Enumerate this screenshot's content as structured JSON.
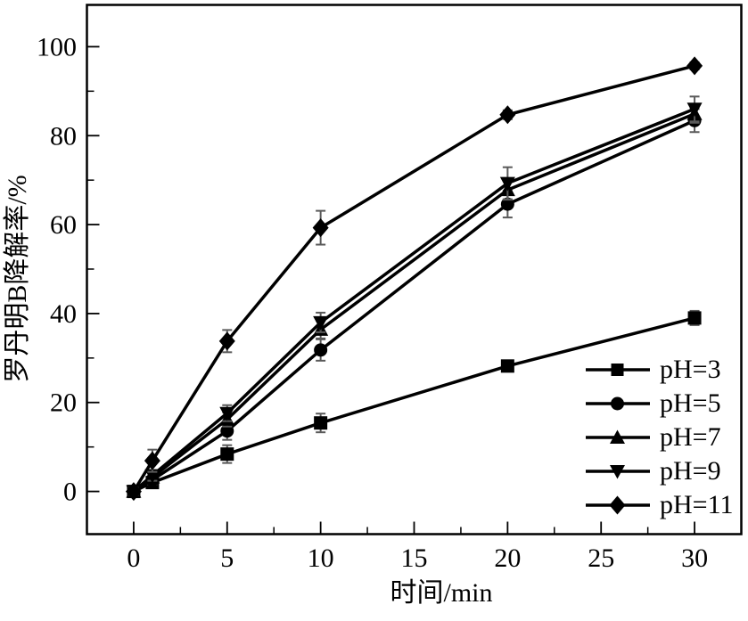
{
  "figure": {
    "background": "#ffffff",
    "axis_color": "#000000",
    "series_color": "#000000",
    "error_bar_color": "#5a5a5a",
    "tick_label_color": "#000000"
  },
  "chart_data": {
    "type": "line",
    "title": "",
    "xlabel": "时间/min",
    "ylabel": "罗丹明B降解率/%",
    "x": [
      0,
      1,
      5,
      10,
      20,
      30
    ],
    "xlim": [
      -2.5,
      32.5
    ],
    "ylim": [
      -9.6,
      109.4
    ],
    "x_major_ticks": [
      0,
      5,
      10,
      15,
      20,
      25,
      30
    ],
    "x_minor_ticks": [
      2.5,
      7.5,
      12.5,
      17.5,
      22.5,
      27.5
    ],
    "y_major_ticks": [
      0,
      20,
      40,
      60,
      80,
      100
    ],
    "y_minor_ticks": [
      10,
      30,
      50,
      70,
      90
    ],
    "grid": false,
    "legend_position": "inside-lower-right",
    "series": [
      {
        "name": "pH=3",
        "marker": "square",
        "values": [
          0,
          2.0,
          8.4,
          15.4,
          28.2,
          39.0
        ],
        "errors": [
          0.5,
          0.9,
          2.0,
          2.1,
          0.4,
          1.6
        ]
      },
      {
        "name": "pH=5",
        "marker": "circle",
        "values": [
          0,
          2.6,
          13.6,
          31.8,
          64.6,
          83.4
        ],
        "errors": [
          0.5,
          1.0,
          2.0,
          2.4,
          3.0,
          2.6
        ]
      },
      {
        "name": "pH=7",
        "marker": "triangle-up",
        "values": [
          0,
          3.2,
          16.2,
          36.4,
          67.8,
          84.9
        ],
        "errors": [
          0.5,
          1.0,
          1.6,
          2.0,
          2.2,
          2.0
        ]
      },
      {
        "name": "pH=9",
        "marker": "triangle-down",
        "values": [
          0,
          3.6,
          17.6,
          38.0,
          69.3,
          86.0
        ],
        "errors": [
          0.5,
          1.2,
          1.8,
          2.2,
          3.6,
          2.8
        ]
      },
      {
        "name": "pH=11",
        "marker": "diamond",
        "values": [
          0,
          6.9,
          33.8,
          59.3,
          84.7,
          95.7
        ],
        "errors": [
          0.8,
          2.5,
          2.5,
          3.8,
          1.0,
          0.8
        ]
      }
    ]
  }
}
